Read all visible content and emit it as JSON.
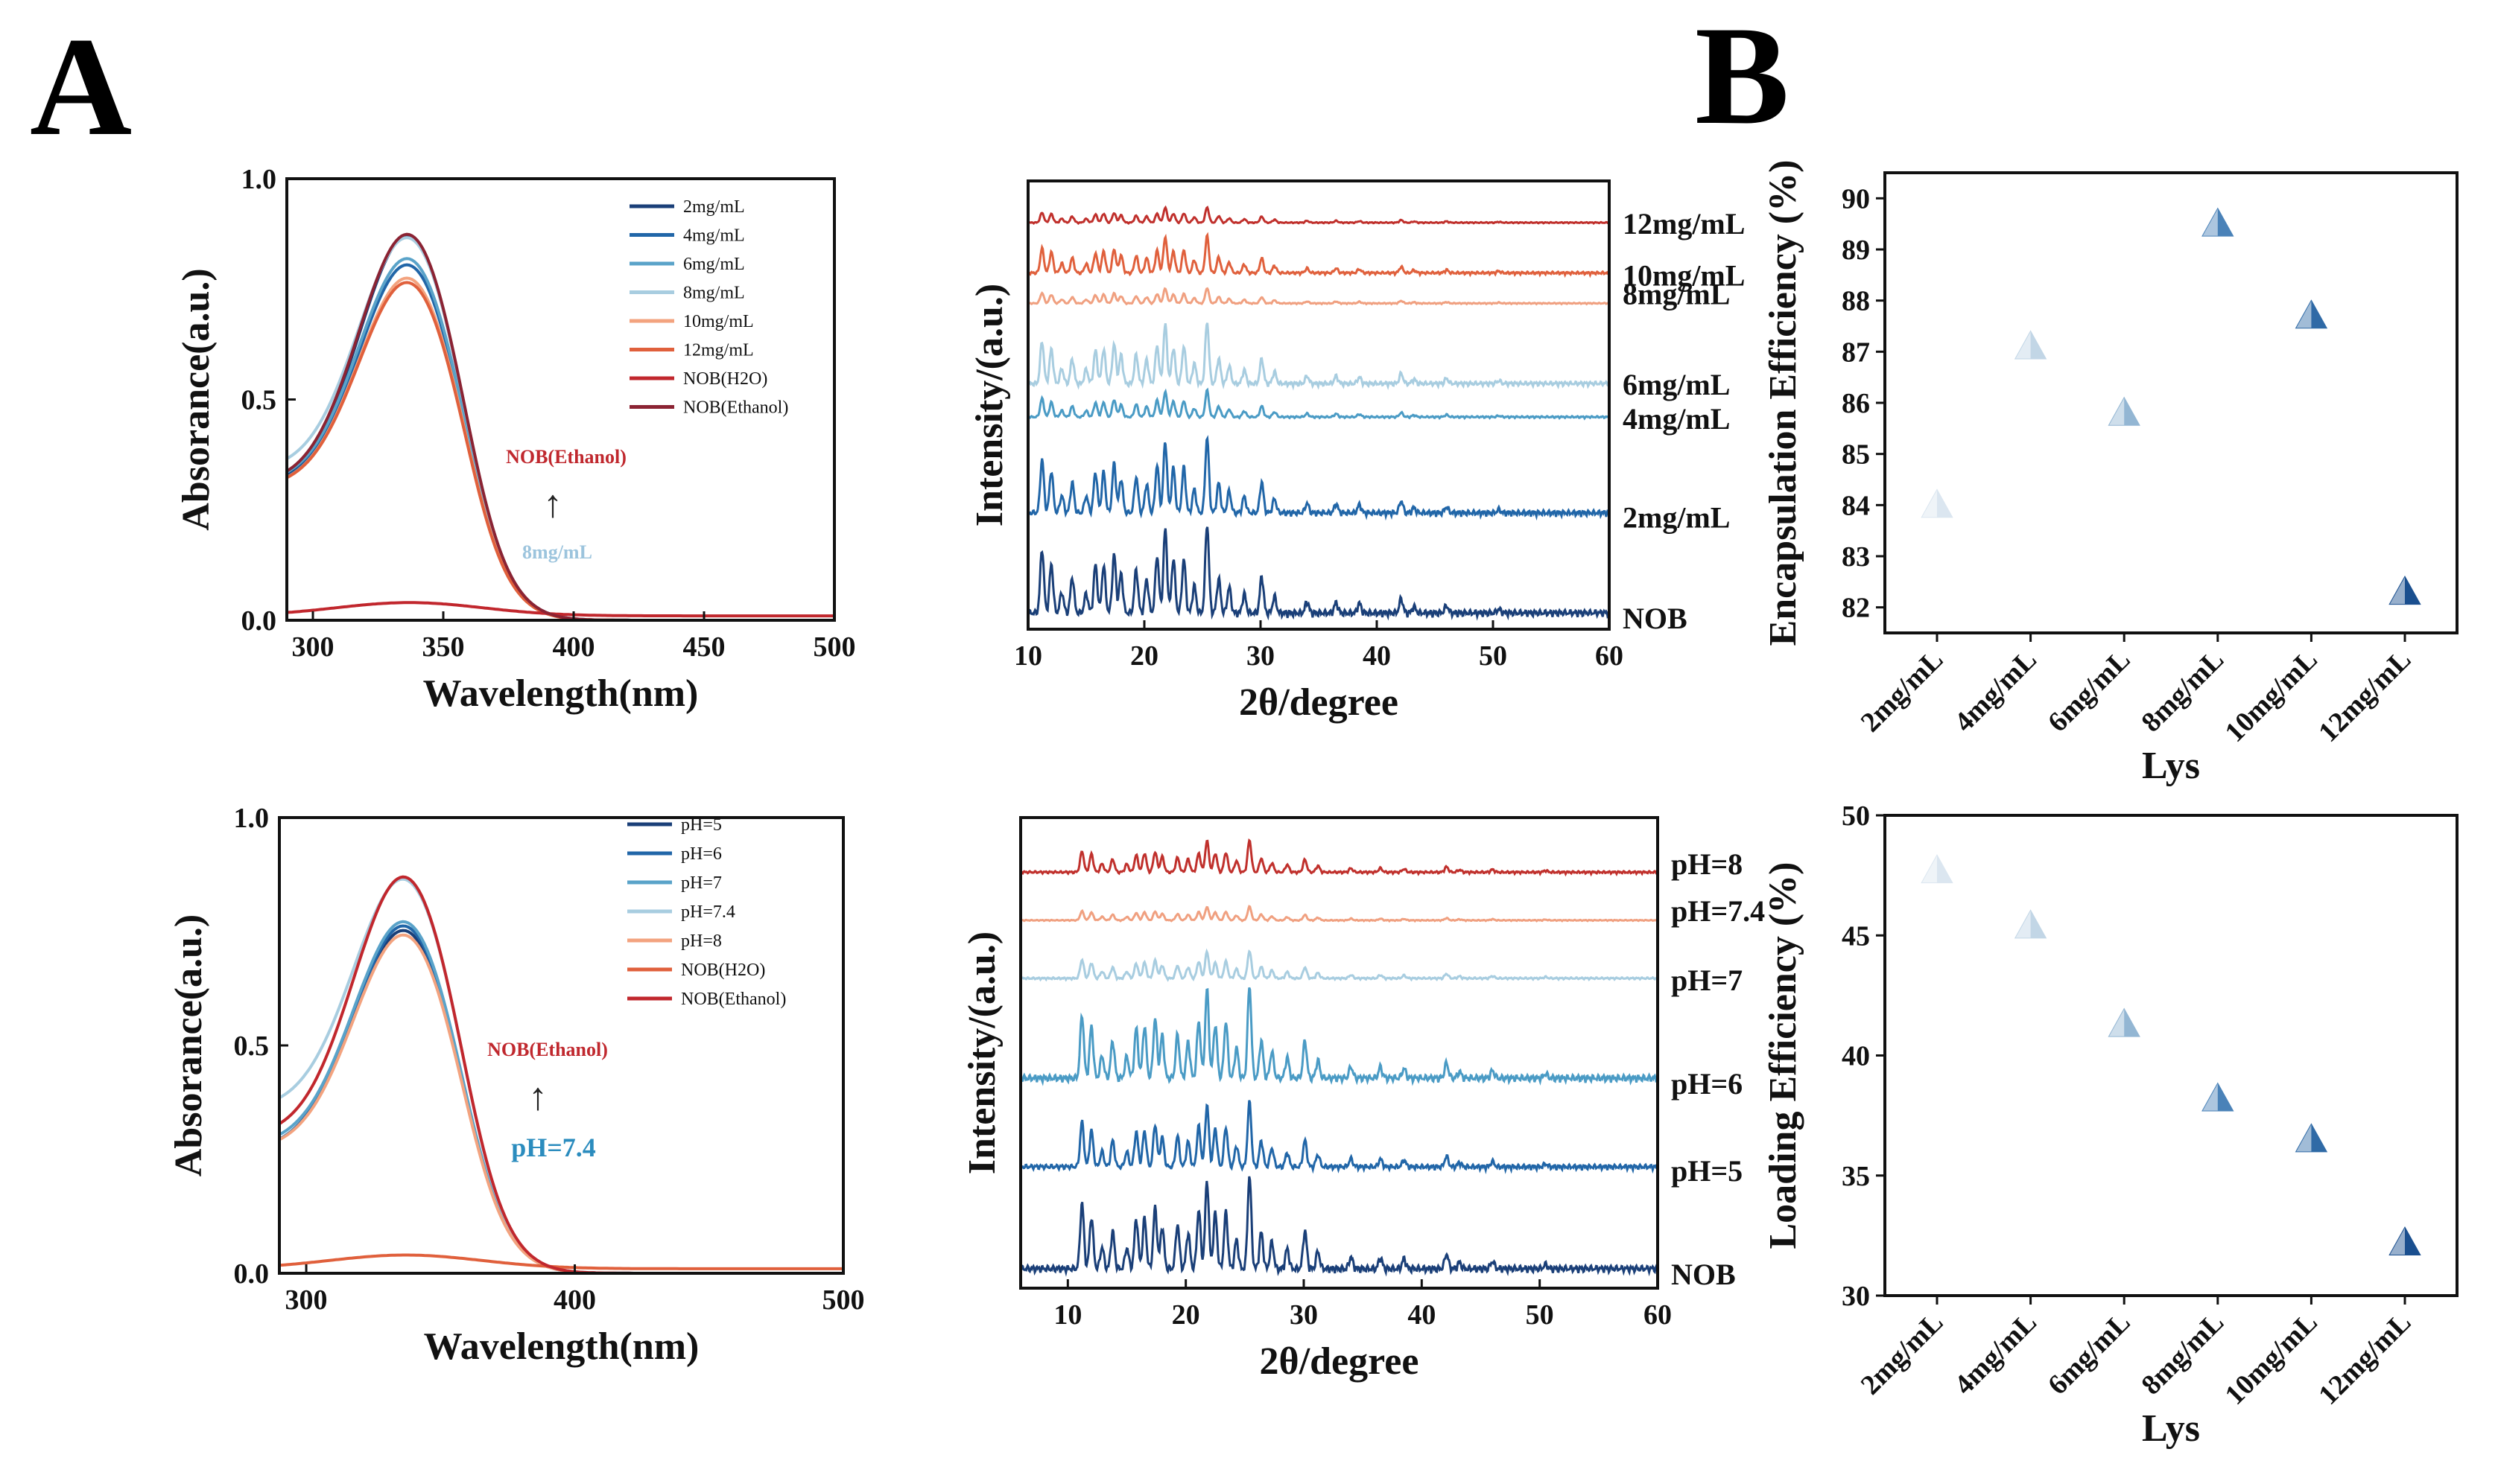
{
  "panels": {
    "a": "A",
    "b": "B"
  },
  "chart_data": [
    {
      "id": "uv1",
      "type": "line",
      "xlabel": "Wavelength(nm)",
      "ylabel": "Absorance(a.u.)",
      "xlim": [
        290,
        500
      ],
      "ylim": [
        0.0,
        1.0
      ],
      "xticks": [
        300,
        350,
        400,
        450,
        500
      ],
      "xtick_labels": [
        "300",
        "350",
        "400",
        "450",
        "500"
      ],
      "yticks": [
        0.0,
        0.5,
        1.0
      ],
      "ytick_labels": [
        "0.0",
        "0.5",
        "1.0"
      ],
      "legend_position": "top-right",
      "series": [
        {
          "name": "2mg/mL",
          "color": "#1a3f78",
          "base": 0.3,
          "peak": 0.745
        },
        {
          "name": "4mg/mL",
          "color": "#2166a8",
          "base": 0.3,
          "peak": 0.68
        },
        {
          "name": "6mg/mL",
          "color": "#5aa3c9",
          "base": 0.31,
          "peak": 0.69
        },
        {
          "name": "8mg/mL",
          "color": "#a8cde0",
          "base": 0.34,
          "peak": 0.725
        },
        {
          "name": "10mg/mL",
          "color": "#f3a37f",
          "base": 0.3,
          "peak": 0.65
        },
        {
          "name": "12mg/mL",
          "color": "#e0603c",
          "base": 0.3,
          "peak": 0.64
        },
        {
          "name": "NOB(H2O)",
          "color": "#c1272d",
          "base": 0.01,
          "peak": 0.04
        },
        {
          "name": "NOB(Ethanol)",
          "color": "#8b2333",
          "base": 0.31,
          "peak": 0.745
        }
      ],
      "annotation": {
        "top": "NOB(Ethanol)",
        "arrow": "↑",
        "bottom": "8mg/mL",
        "top_color": "#c0282e",
        "bottom_color": "#9cc4dd"
      }
    },
    {
      "id": "xrd1",
      "type": "line",
      "xlabel": "2θ/degree",
      "ylabel": "Intensity/(a.u.)",
      "xlim": [
        10,
        60
      ],
      "xticks": [
        10,
        20,
        30,
        40,
        50,
        60
      ],
      "xtick_labels": [
        "10",
        "20",
        "30",
        "40",
        "50",
        "60"
      ],
      "series": [
        {
          "name": "12mg/mL",
          "color": "#c0302c",
          "baseline": 0.905,
          "scale": 0.035
        },
        {
          "name": "10mg/mL",
          "color": "#e0603c",
          "baseline": 0.79,
          "scale": 0.085
        },
        {
          "name": "8mg/mL",
          "color": "#f0a080",
          "baseline": 0.725,
          "scale": 0.035
        },
        {
          "name": "6mg/mL",
          "color": "#a8cde0",
          "baseline": 0.54,
          "scale": 0.14
        },
        {
          "name": "4mg/mL",
          "color": "#4a9bc5",
          "baseline": 0.47,
          "scale": 0.06
        },
        {
          "name": "2mg/mL",
          "color": "#2166a8",
          "baseline": 0.25,
          "scale": 0.17
        },
        {
          "name": "NOB",
          "color": "#1a3f78",
          "baseline": 0.025,
          "scale": 0.2
        }
      ]
    },
    {
      "id": "scatter1",
      "type": "scatter",
      "xlabel": "Lys",
      "ylabel": "Encapsulation Efficiency (%)",
      "categories": [
        "2mg/mL",
        "4mg/mL",
        "6mg/mL",
        "8mg/mL",
        "10mg/mL",
        "12mg/mL"
      ],
      "values": [
        84.0,
        87.1,
        85.8,
        89.5,
        87.7,
        82.3
      ],
      "ylim": [
        81.5,
        90.5
      ],
      "yticks": [
        82,
        83,
        84,
        85,
        86,
        87,
        88,
        89,
        90
      ],
      "ytick_labels": [
        "82",
        "83",
        "84",
        "85",
        "86",
        "87",
        "88",
        "89",
        "90"
      ],
      "colors": [
        "#dbe6f0",
        "#c2d6e6",
        "#93b6d3",
        "#4a82b8",
        "#2f6aa6",
        "#1a4f8f"
      ]
    },
    {
      "id": "uv2",
      "type": "line",
      "xlabel": "Wavelength(nm)",
      "ylabel": "Absorance(a.u.)",
      "xlim": [
        290,
        500
      ],
      "ylim": [
        0.0,
        1.0
      ],
      "xticks": [
        300,
        400,
        500
      ],
      "xtick_labels": [
        "300",
        "400",
        "500"
      ],
      "yticks": [
        0.0,
        0.5,
        1.0
      ],
      "ytick_labels": [
        "0.0",
        "0.5",
        "1.0"
      ],
      "legend_position": "top-right",
      "series": [
        {
          "name": "pH=5",
          "color": "#1a3f78",
          "base": 0.27,
          "peak": 0.64
        },
        {
          "name": "pH=6",
          "color": "#2166a8",
          "base": 0.27,
          "peak": 0.65
        },
        {
          "name": "pH=7",
          "color": "#5aa3c9",
          "base": 0.28,
          "peak": 0.655
        },
        {
          "name": "pH=7.4",
          "color": "#a8cde0",
          "base": 0.36,
          "peak": 0.715
        },
        {
          "name": "pH=8",
          "color": "#f3a37f",
          "base": 0.27,
          "peak": 0.63
        },
        {
          "name": "NOB(H2O)",
          "color": "#e0603c",
          "base": 0.01,
          "peak": 0.04
        },
        {
          "name": "NOB(Ethanol)",
          "color": "#c1272d",
          "base": 0.3,
          "peak": 0.745
        }
      ],
      "annotation": {
        "top": "NOB(Ethanol)",
        "arrow": "↑",
        "bottom": "pH=7.4",
        "top_color": "#c0282e",
        "bottom_color": "#2b8cbe"
      }
    },
    {
      "id": "xrd2",
      "type": "line",
      "xlabel": "2θ/degree",
      "ylabel": "Intensity/(a.u.)",
      "xlim": [
        6,
        60
      ],
      "xticks": [
        10,
        20,
        30,
        40,
        50,
        60
      ],
      "xtick_labels": [
        "10",
        "20",
        "30",
        "40",
        "50",
        "60"
      ],
      "series": [
        {
          "name": "pH=8",
          "color": "#c0302c",
          "baseline": 0.88,
          "scale": 0.07
        },
        {
          "name": "pH=7.4",
          "color": "#f0a080",
          "baseline": 0.78,
          "scale": 0.03
        },
        {
          "name": "pH=7",
          "color": "#a8cde0",
          "baseline": 0.655,
          "scale": 0.06
        },
        {
          "name": "pH=6",
          "color": "#4a9bc5",
          "baseline": 0.435,
          "scale": 0.2
        },
        {
          "name": "pH=5",
          "color": "#2166a8",
          "baseline": 0.25,
          "scale": 0.14
        },
        {
          "name": "NOB",
          "color": "#1a3f78",
          "baseline": 0.03,
          "scale": 0.2
        }
      ]
    },
    {
      "id": "scatter2",
      "type": "scatter",
      "xlabel": "Lys",
      "ylabel": "Loading Efficiency (%)",
      "categories": [
        "2mg/mL",
        "4mg/mL",
        "6mg/mL",
        "8mg/mL",
        "10mg/mL",
        "12mg/mL"
      ],
      "values": [
        47.7,
        45.4,
        41.3,
        38.2,
        36.5,
        32.2
      ],
      "ylim": [
        30,
        50
      ],
      "yticks": [
        30,
        35,
        40,
        45,
        50
      ],
      "ytick_labels": [
        "30",
        "35",
        "40",
        "45",
        "50"
      ],
      "colors": [
        "#dbe6f0",
        "#c2d6e6",
        "#93b6d3",
        "#4a82b8",
        "#2f6aa6",
        "#1a4f8f"
      ]
    }
  ]
}
